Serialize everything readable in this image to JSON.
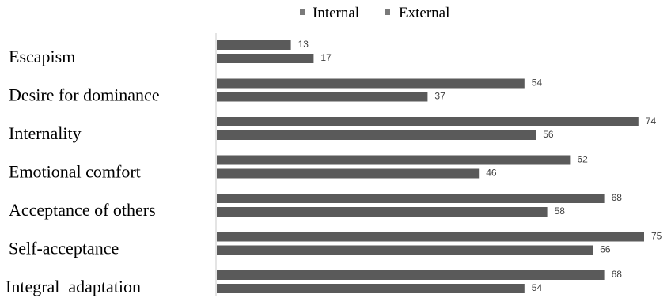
{
  "chart_data": {
    "type": "bar",
    "orientation": "horizontal",
    "categories": [
      "Escapism",
      "Desire for dominance",
      "Internality",
      "Emotional comfort",
      "Acceptance of others",
      "Self-acceptance",
      "Integral  adaptation"
    ],
    "series": [
      {
        "name": "Internal",
        "values": [
          13,
          54,
          74,
          62,
          68,
          75,
          68
        ]
      },
      {
        "name": "External",
        "values": [
          17,
          37,
          56,
          46,
          58,
          66,
          54
        ]
      }
    ],
    "xlim": [
      0,
      75
    ],
    "legend_position": "top",
    "grid": false,
    "colors": {
      "Internal": "#5a5a5a",
      "External": "#5a5a5a",
      "legend_marker": "#7a7a7a",
      "axis": "#c8c8c8",
      "label_text": "#000000",
      "value_text": "#404040"
    }
  }
}
